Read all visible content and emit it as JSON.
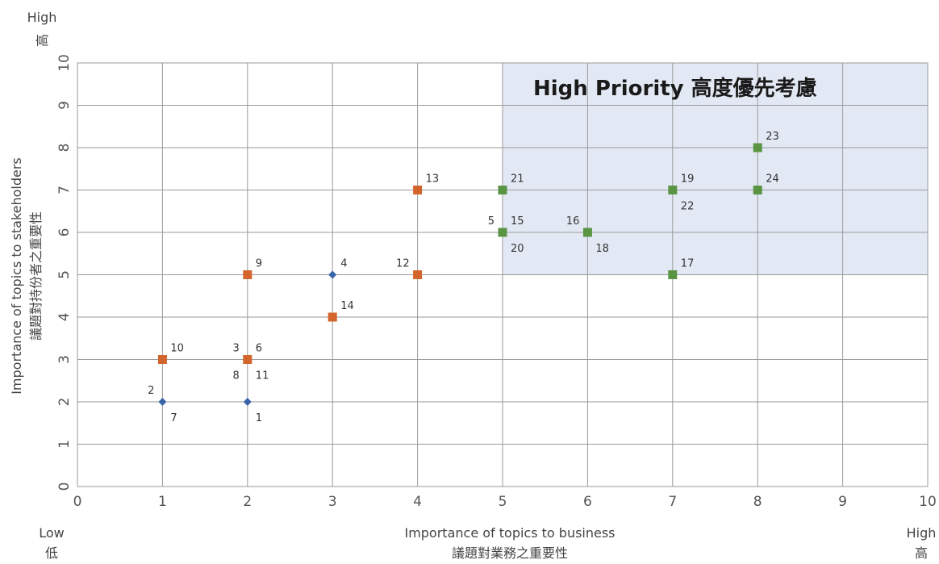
{
  "chart_data": {
    "type": "scatter",
    "xlim": [
      0,
      10
    ],
    "ylim": [
      0,
      10
    ],
    "x_ticks": [
      "0",
      "1",
      "2",
      "3",
      "4",
      "5",
      "6",
      "7",
      "8",
      "9",
      "10"
    ],
    "y_ticks": [
      "0",
      "1",
      "2",
      "3",
      "4",
      "5",
      "6",
      "7",
      "8",
      "9",
      "10"
    ],
    "grid": true,
    "xlabel": [
      "Importance of topics to business",
      "議題對業務之重要性"
    ],
    "ylabel": [
      "Importance of topics to stakeholders",
      "議題對持份者之重要性"
    ],
    "x_low": [
      "Low",
      "低"
    ],
    "x_high": [
      "High",
      "高"
    ],
    "y_high": [
      "High",
      "高"
    ],
    "highlight_region": {
      "title": "High Priority 高度優先考慮",
      "x_range": [
        5,
        10
      ],
      "y_range": [
        5,
        10
      ],
      "fill": "#e3e9f4"
    },
    "colors": {
      "blue": "#3a64a8",
      "orange": "#d2642c",
      "green": "#5a9443"
    },
    "series": [
      {
        "marker": "diamond",
        "color": "blue",
        "points": [
          {
            "x": 1,
            "y": 2,
            "labels": [
              {
                "text": "2",
                "pos": "upper-left"
              },
              {
                "text": "7",
                "pos": "lower-right"
              }
            ]
          },
          {
            "x": 2,
            "y": 2,
            "labels": [
              {
                "text": "1",
                "pos": "lower-right"
              }
            ]
          },
          {
            "x": 3,
            "y": 5,
            "labels": [
              {
                "text": "4",
                "pos": "upper-right"
              }
            ]
          }
        ]
      },
      {
        "marker": "square",
        "color": "orange",
        "points": [
          {
            "x": 1,
            "y": 3,
            "labels": [
              {
                "text": "10",
                "pos": "upper-right"
              }
            ]
          },
          {
            "x": 2,
            "y": 3,
            "labels": [
              {
                "text": "3",
                "pos": "upper-left"
              },
              {
                "text": "6",
                "pos": "upper-right"
              },
              {
                "text": "8",
                "pos": "lower-left"
              },
              {
                "text": "11",
                "pos": "lower-right"
              }
            ]
          },
          {
            "x": 2,
            "y": 5,
            "labels": [
              {
                "text": "9",
                "pos": "upper-right"
              }
            ]
          },
          {
            "x": 3,
            "y": 4,
            "labels": [
              {
                "text": "14",
                "pos": "upper-right"
              }
            ]
          },
          {
            "x": 4,
            "y": 5,
            "labels": [
              {
                "text": "12",
                "pos": "upper-left"
              }
            ]
          },
          {
            "x": 4,
            "y": 7,
            "labels": [
              {
                "text": "13",
                "pos": "upper-right"
              }
            ]
          }
        ]
      },
      {
        "marker": "square",
        "color": "green",
        "points": [
          {
            "x": 5,
            "y": 7,
            "labels": [
              {
                "text": "21",
                "pos": "upper-right"
              }
            ]
          },
          {
            "x": 5,
            "y": 6,
            "labels": [
              {
                "text": "5",
                "pos": "upper-left"
              },
              {
                "text": "15",
                "pos": "upper-right"
              },
              {
                "text": "20",
                "pos": "lower-right"
              }
            ]
          },
          {
            "x": 6,
            "y": 6,
            "labels": [
              {
                "text": "16",
                "pos": "upper-left"
              },
              {
                "text": "18",
                "pos": "lower-right"
              }
            ]
          },
          {
            "x": 7,
            "y": 7,
            "labels": [
              {
                "text": "19",
                "pos": "upper-right"
              },
              {
                "text": "22",
                "pos": "lower-right"
              }
            ]
          },
          {
            "x": 7,
            "y": 5,
            "labels": [
              {
                "text": "17",
                "pos": "upper-right"
              }
            ]
          },
          {
            "x": 8,
            "y": 8,
            "labels": [
              {
                "text": "23",
                "pos": "upper-right"
              }
            ]
          },
          {
            "x": 8,
            "y": 7,
            "labels": [
              {
                "text": "24",
                "pos": "upper-right"
              }
            ]
          }
        ]
      }
    ]
  }
}
